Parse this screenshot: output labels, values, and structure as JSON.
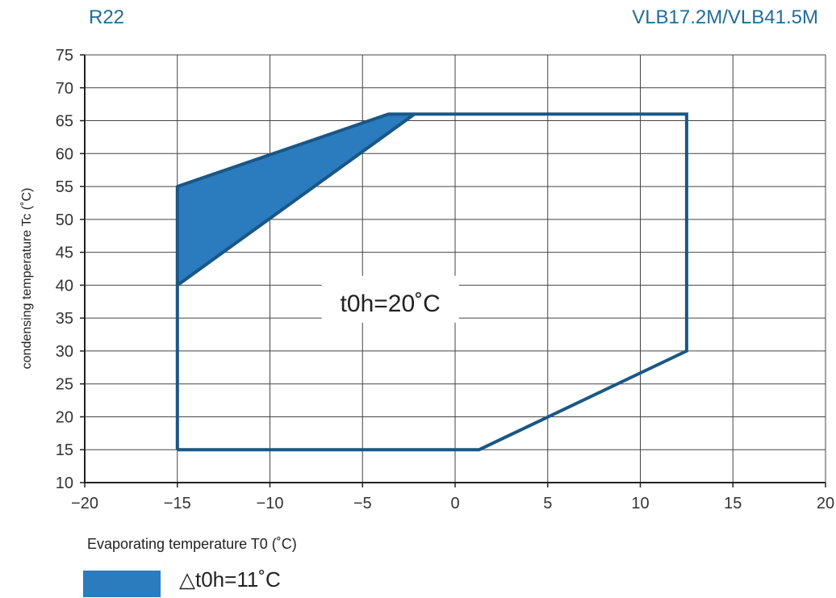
{
  "header": {
    "refrigerant": "R22",
    "model": "VLB17.2M/VLB41.5M"
  },
  "chart_data": {
    "type": "area",
    "xlabel": "Evaporating temperature T0 (˚C)",
    "ylabel": "condensing temperature Tc (˚C)",
    "xlim": [
      -20,
      20
    ],
    "ylim": [
      10,
      75
    ],
    "x_ticks": [
      -20,
      -15,
      -10,
      -5,
      0,
      5,
      10,
      15,
      20
    ],
    "y_ticks": [
      10,
      15,
      20,
      25,
      30,
      35,
      40,
      45,
      50,
      55,
      60,
      65,
      70,
      75
    ],
    "x_tick_labels": [
      "−20",
      "−15",
      "−10",
      "−5",
      "0",
      "5",
      "10",
      "15",
      "20"
    ],
    "grid": true,
    "series": [
      {
        "name": "t0h=20˚C",
        "style": "outline",
        "color": "#1a5785",
        "points": [
          [
            -15,
            15
          ],
          [
            1.3,
            15
          ],
          [
            12.5,
            30
          ],
          [
            12.5,
            66
          ],
          [
            -2.2,
            66
          ],
          [
            -15,
            40
          ],
          [
            -15,
            15
          ]
        ]
      },
      {
        "name": "△t0h=11˚C",
        "style": "filled",
        "color": "#2b7bbf",
        "points": [
          [
            -15,
            40
          ],
          [
            -15,
            55
          ],
          [
            -3.6,
            66
          ],
          [
            -2.2,
            66
          ],
          [
            -15,
            40
          ]
        ]
      }
    ],
    "annotation": "t0h=20˚C",
    "annotation_at": [
      -3.5,
      37.5
    ]
  },
  "legend": {
    "label": "△t0h=11˚C",
    "color": "#2b7bbf"
  }
}
